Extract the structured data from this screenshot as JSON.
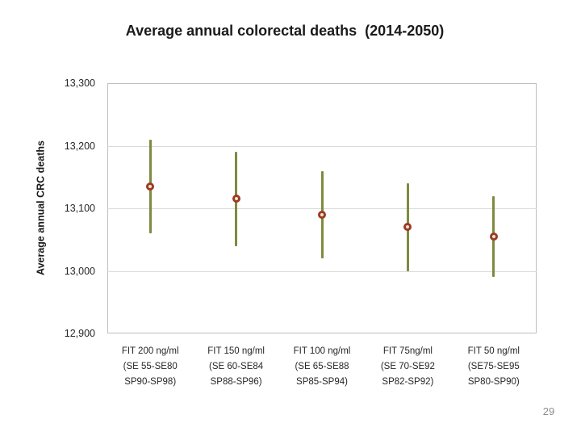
{
  "page_number": "29",
  "chart_data": {
    "type": "scatter",
    "title": "Average annual colorectal deaths  (2014-2050)",
    "ylabel": "Average annual CRC deaths",
    "xlabel": "",
    "ylim": [
      12900,
      13300
    ],
    "yticks": [
      13300,
      13200,
      13100,
      13000,
      12900
    ],
    "ytick_labels": [
      "13,300",
      "13,200",
      "13,100",
      "13,000",
      "12,900"
    ],
    "grid": "horizontal",
    "legend": "none",
    "categories": [
      [
        "FIT 200 ng/ml",
        "(SE 55-SE80",
        "SP90-SP98)"
      ],
      [
        "FIT 150 ng/ml",
        "(SE 60-SE84",
        "SP88-SP96)"
      ],
      [
        "FIT 100 ng/ml",
        "(SE 65-SE88",
        "SP85-SP94)"
      ],
      [
        "FIT 75ng/ml",
        "(SE 70-SE92",
        "SP82-SP92)"
      ],
      [
        "FIT 50 ng/ml",
        "(SE75-SE95",
        "SP80-SP90)"
      ]
    ],
    "values": [
      13135,
      13115,
      13090,
      13070,
      13055
    ],
    "error_low": [
      13060,
      13040,
      13020,
      13000,
      12990
    ],
    "error_high": [
      13210,
      13190,
      13160,
      13140,
      13120
    ],
    "colors": {
      "error_bar": "#7e8a3f",
      "marker_ring": "#9e3a26",
      "marker_center": "#ede8d2",
      "gridline": "#d9d9d9",
      "plot_border": "#bfbfbf"
    }
  }
}
